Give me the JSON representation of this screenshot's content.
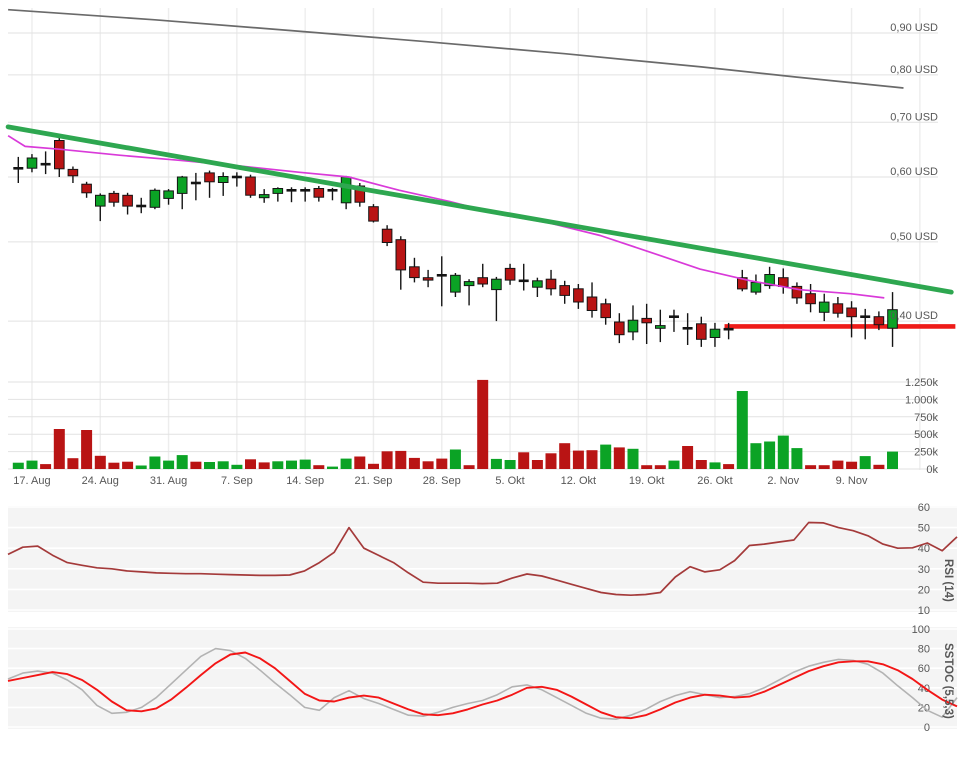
{
  "chart_data": {
    "type": "candlestick",
    "currency": "USD",
    "price_axis": {
      "scale": "log",
      "labels": [
        "0,90 USD",
        "0,80 USD",
        "0,70 USD",
        "0,60 USD",
        "0,50 USD",
        "0,40 USD"
      ],
      "values": [
        0.9,
        0.8,
        0.7,
        0.6,
        0.5,
        0.4
      ]
    },
    "volume_axis": {
      "labels": [
        "1.250k",
        "1.000k",
        "750k",
        "500k",
        "250k",
        "0k"
      ],
      "values": [
        1250,
        1000,
        750,
        500,
        250,
        0
      ]
    },
    "x_axis": {
      "tick_labels": [
        "17. Aug",
        "24. Aug",
        "31. Aug",
        "7. Sep",
        "14. Sep",
        "21. Sep",
        "28. Sep",
        "5. Okt",
        "12. Okt",
        "19. Okt",
        "26. Okt",
        "2. Nov",
        "9. Nov"
      ],
      "monday_indices": [
        1,
        6,
        11,
        16,
        21,
        26,
        31,
        36,
        41,
        46,
        51,
        56,
        61
      ]
    },
    "candle_columns": [
      "open",
      "high",
      "low",
      "close",
      "volume_k",
      "volume_color"
    ],
    "candles": [
      [
        0.615,
        0.635,
        0.59,
        0.615,
        90,
        "g"
      ],
      [
        0.615,
        0.64,
        0.608,
        0.633,
        120,
        "g"
      ],
      [
        0.622,
        0.645,
        0.605,
        0.622,
        70,
        "r"
      ],
      [
        0.665,
        0.67,
        0.6,
        0.614,
        575,
        "r"
      ],
      [
        0.613,
        0.618,
        0.59,
        0.602,
        155,
        "r"
      ],
      [
        0.588,
        0.592,
        0.566,
        0.574,
        560,
        "r"
      ],
      [
        0.553,
        0.573,
        0.53,
        0.57,
        190,
        "r"
      ],
      [
        0.573,
        0.577,
        0.552,
        0.559,
        90,
        "r"
      ],
      [
        0.57,
        0.574,
        0.54,
        0.553,
        105,
        "r"
      ],
      [
        0.553,
        0.566,
        0.542,
        0.553,
        50,
        "g"
      ],
      [
        0.551,
        0.581,
        0.548,
        0.578,
        180,
        "g"
      ],
      [
        0.565,
        0.58,
        0.555,
        0.577,
        120,
        "g"
      ],
      [
        0.573,
        0.602,
        0.548,
        0.6,
        200,
        "g"
      ],
      [
        0.59,
        0.607,
        0.562,
        0.59,
        105,
        "r"
      ],
      [
        0.607,
        0.611,
        0.566,
        0.592,
        100,
        "g"
      ],
      [
        0.591,
        0.608,
        0.569,
        0.601,
        110,
        "g"
      ],
      [
        0.6,
        0.608,
        0.584,
        0.6,
        60,
        "g"
      ],
      [
        0.6,
        0.604,
        0.566,
        0.57,
        140,
        "r"
      ],
      [
        0.566,
        0.58,
        0.558,
        0.571,
        95,
        "r"
      ],
      [
        0.573,
        0.583,
        0.56,
        0.581,
        110,
        "g"
      ],
      [
        0.578,
        0.583,
        0.559,
        0.578,
        120,
        "g"
      ],
      [
        0.578,
        0.583,
        0.56,
        0.578,
        135,
        "g"
      ],
      [
        0.581,
        0.585,
        0.56,
        0.567,
        55,
        "r"
      ],
      [
        0.578,
        0.582,
        0.562,
        0.578,
        35,
        "g"
      ],
      [
        0.558,
        0.602,
        0.548,
        0.6,
        150,
        "g"
      ],
      [
        0.585,
        0.59,
        0.552,
        0.559,
        180,
        "r"
      ],
      [
        0.552,
        0.556,
        0.528,
        0.53,
        75,
        "r"
      ],
      [
        0.518,
        0.524,
        0.494,
        0.499,
        255,
        "r"
      ],
      [
        0.503,
        0.508,
        0.437,
        0.462,
        260,
        "r"
      ],
      [
        0.466,
        0.478,
        0.446,
        0.452,
        160,
        "r"
      ],
      [
        0.452,
        0.462,
        0.44,
        0.449,
        110,
        "r"
      ],
      [
        0.455,
        0.48,
        0.417,
        0.455,
        150,
        "r"
      ],
      [
        0.434,
        0.458,
        0.428,
        0.455,
        280,
        "g"
      ],
      [
        0.442,
        0.45,
        0.418,
        0.447,
        55,
        "r"
      ],
      [
        0.452,
        0.47,
        0.44,
        0.444,
        1280,
        "r"
      ],
      [
        0.437,
        0.453,
        0.4,
        0.45,
        145,
        "g"
      ],
      [
        0.464,
        0.47,
        0.443,
        0.449,
        130,
        "g"
      ],
      [
        0.448,
        0.47,
        0.436,
        0.448,
        240,
        "r"
      ],
      [
        0.44,
        0.452,
        0.428,
        0.448,
        130,
        "r"
      ],
      [
        0.45,
        0.462,
        0.43,
        0.438,
        225,
        "r"
      ],
      [
        0.442,
        0.448,
        0.42,
        0.43,
        370,
        "r"
      ],
      [
        0.438,
        0.444,
        0.414,
        0.422,
        265,
        "r"
      ],
      [
        0.428,
        0.446,
        0.404,
        0.412,
        270,
        "r"
      ],
      [
        0.42,
        0.426,
        0.396,
        0.404,
        350,
        "g"
      ],
      [
        0.399,
        0.409,
        0.376,
        0.385,
        310,
        "r"
      ],
      [
        0.388,
        0.418,
        0.379,
        0.401,
        290,
        "g"
      ],
      [
        0.403,
        0.42,
        0.375,
        0.398,
        55,
        "r"
      ],
      [
        0.392,
        0.413,
        0.377,
        0.395,
        55,
        "r"
      ],
      [
        0.405,
        0.413,
        0.388,
        0.405,
        120,
        "g"
      ],
      [
        0.392,
        0.409,
        0.374,
        0.392,
        330,
        "r"
      ],
      [
        0.397,
        0.405,
        0.372,
        0.38,
        130,
        "r"
      ],
      [
        0.382,
        0.398,
        0.372,
        0.391,
        95,
        "g"
      ],
      [
        0.391,
        0.398,
        0.38,
        0.391,
        70,
        "r"
      ],
      [
        0.452,
        0.462,
        0.435,
        0.438,
        1120,
        "g"
      ],
      [
        0.434,
        0.456,
        0.431,
        0.446,
        370,
        "g"
      ],
      [
        0.442,
        0.466,
        0.438,
        0.456,
        395,
        "g"
      ],
      [
        0.452,
        0.464,
        0.432,
        0.441,
        480,
        "g"
      ],
      [
        0.441,
        0.446,
        0.42,
        0.427,
        300,
        "g"
      ],
      [
        0.432,
        0.444,
        0.41,
        0.42,
        55,
        "r"
      ],
      [
        0.41,
        0.432,
        0.4,
        0.422,
        55,
        "r"
      ],
      [
        0.42,
        0.428,
        0.404,
        0.409,
        120,
        "r"
      ],
      [
        0.415,
        0.423,
        0.382,
        0.405,
        105,
        "r"
      ],
      [
        0.405,
        0.414,
        0.38,
        0.405,
        185,
        "g"
      ],
      [
        0.405,
        0.411,
        0.39,
        0.396,
        60,
        "r"
      ],
      [
        0.392,
        0.434,
        0.372,
        0.413,
        250,
        "g"
      ]
    ],
    "overlays": {
      "trendline_green": {
        "points_index_price": [
          [
            -0.75,
            0.691
          ],
          [
            68.3,
            0.434
          ]
        ]
      },
      "moving_average_magenta": {
        "points_index_price": [
          [
            -0.75,
            0.674
          ],
          [
            0.5,
            0.654
          ],
          [
            3,
            0.649
          ],
          [
            7.4,
            0.638
          ],
          [
            11.8,
            0.629
          ],
          [
            16.2,
            0.619
          ],
          [
            20.6,
            0.608
          ],
          [
            24.2,
            0.6
          ],
          [
            27.9,
            0.578
          ],
          [
            31.6,
            0.56
          ],
          [
            35.3,
            0.54
          ],
          [
            38.9,
            0.527
          ],
          [
            42.6,
            0.509
          ],
          [
            46.2,
            0.486
          ],
          [
            49.9,
            0.463
          ],
          [
            53.6,
            0.448
          ],
          [
            57.2,
            0.437
          ],
          [
            60.9,
            0.432
          ],
          [
            63.4,
            0.427
          ]
        ]
      },
      "benchmark_gray": {
        "points_index_price": [
          [
            -0.75,
            0.961
          ],
          [
            10,
            0.934
          ],
          [
            20,
            0.906
          ],
          [
            30,
            0.878
          ],
          [
            40,
            0.849
          ],
          [
            50,
            0.818
          ],
          [
            57,
            0.795
          ],
          [
            64.8,
            0.771
          ]
        ]
      },
      "support_red": {
        "price": 0.394,
        "points_index_price": [
          [
            51.7,
            0.394
          ],
          [
            68.6,
            0.394
          ]
        ]
      }
    },
    "rsi": {
      "label": "RSI (14)",
      "axis_labels": [
        "60",
        "50",
        "40",
        "30",
        "20",
        "10"
      ],
      "axis_values": [
        60,
        50,
        40,
        30,
        20,
        10
      ],
      "values": [
        37,
        40.5,
        41,
        36.6,
        33,
        31.7,
        30.5,
        30,
        29,
        28.5,
        28,
        27.8,
        27.6,
        27.6,
        27.4,
        27.2,
        27,
        26.8,
        26.8,
        27,
        29,
        33,
        38,
        50,
        40,
        36.5,
        33,
        28,
        23.5,
        23,
        23,
        23,
        22.8,
        23,
        25.5,
        27.5,
        26.5,
        24.5,
        22.5,
        20.5,
        18.5,
        17.5,
        17.2,
        17.5,
        18.5,
        26,
        31,
        28.5,
        29.5,
        34,
        41.3,
        42,
        43,
        44,
        52.5,
        52.3,
        50,
        48.5,
        46,
        42,
        40,
        40.2,
        42.5,
        38.8,
        45.5
      ]
    },
    "sstoc": {
      "label": "SSTOC (5,5,3)",
      "axis_labels": [
        "100",
        "80",
        "60",
        "40",
        "20",
        "0"
      ],
      "axis_values": [
        100,
        80,
        60,
        40,
        20,
        0
      ],
      "k_gray": [
        49,
        55,
        57,
        55,
        48,
        38,
        22,
        14,
        15,
        20,
        30,
        44,
        58,
        72,
        80,
        78,
        70,
        58,
        45,
        33,
        20,
        17,
        30,
        37,
        29,
        24,
        18,
        12,
        11,
        15,
        20,
        24,
        27,
        33,
        41,
        43,
        38,
        30,
        22,
        14,
        9,
        8,
        12,
        18,
        26,
        32,
        36,
        33,
        30,
        31,
        34,
        40,
        48,
        56,
        62,
        66,
        69,
        68,
        64,
        55,
        42,
        30,
        17,
        10,
        30
      ],
      "d_red": [
        47,
        50,
        53,
        56,
        54,
        48,
        38,
        26,
        17,
        16,
        19,
        28,
        40,
        53,
        65,
        74,
        76,
        70,
        60,
        47,
        34,
        27,
        26,
        30,
        32,
        30,
        24,
        18,
        13,
        12,
        14,
        18,
        23,
        27,
        33,
        40,
        41,
        38,
        31,
        23,
        15,
        10,
        9,
        12,
        18,
        25,
        30,
        33,
        32,
        30,
        31,
        36,
        43,
        50,
        57,
        62,
        66,
        67,
        67,
        64,
        58,
        49,
        38,
        28,
        21
      ]
    },
    "colors": {
      "candle_up": "#0ba325",
      "candle_down": "#b91414",
      "candle_border": "#141414",
      "volume_up": "#0ba325",
      "volume_down": "#b91414",
      "trendline_green": "#2ea750",
      "moving_average_magenta": "#d93ad9",
      "benchmark_gray": "#6a6a6a",
      "support_red": "#ee1b18",
      "rsi_line": "#a43a3a",
      "sstoc_k": "#b3b3b3",
      "sstoc_d": "#f31616",
      "grid_h": "#e2e2e2",
      "grid_v": "#ededed",
      "panel_bg": "#f4f4f4",
      "panel_grid": "#ffffff",
      "axis_text": "#575757",
      "indicator_title": "#4c72a0"
    }
  }
}
